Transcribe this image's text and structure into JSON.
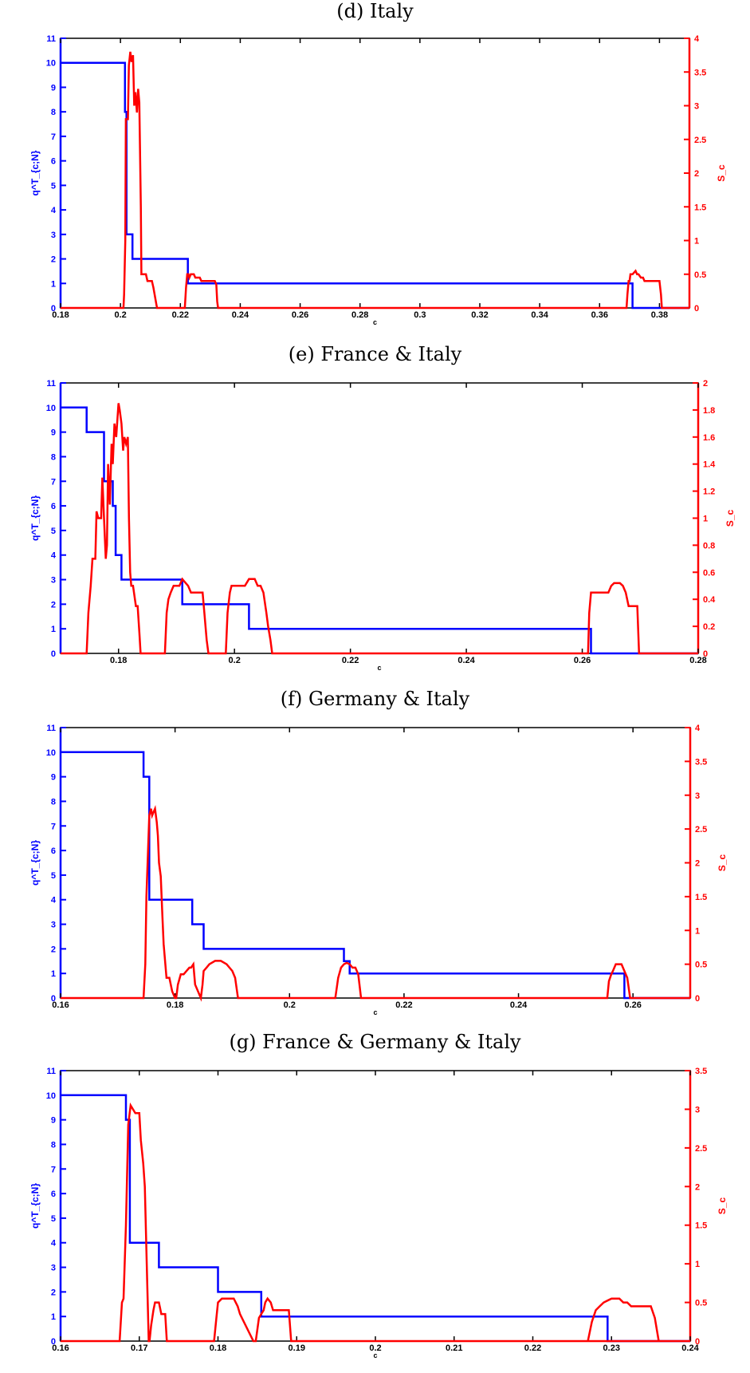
{
  "colors": {
    "left_series": "#0000ff",
    "right_series": "#ff0000",
    "axis": "#000000"
  },
  "chart_data": [
    {
      "type": "line",
      "title": "(d) Italy",
      "xlabel": "c",
      "ylabel_left": "q^T_{c;N}",
      "ylabel_right": "S_c",
      "xlim": [
        0.18,
        0.39
      ],
      "ylim_left": [
        0,
        11
      ],
      "ylim_right": [
        0,
        4
      ],
      "xticks": [
        "0.18",
        "0.2",
        "0.22",
        "0.24",
        "0.26",
        "0.28",
        "0.3",
        "0.32",
        "0.34",
        "0.36",
        "0.38"
      ],
      "yticks_left": [
        "0",
        "1",
        "2",
        "3",
        "4",
        "5",
        "6",
        "7",
        "8",
        "9",
        "10",
        "11"
      ],
      "yticks_right": [
        "0",
        "0.5",
        "1",
        "1.5",
        "2",
        "2.5",
        "3",
        "3.5",
        "4"
      ],
      "series": [
        {
          "axis": "left",
          "color": "#0000ff",
          "x": [
            0.18,
            0.2015,
            0.2015,
            0.202,
            0.202,
            0.204,
            0.204,
            0.2225,
            0.2225,
            0.371,
            0.371,
            0.39
          ],
          "y": [
            10,
            10,
            8,
            8,
            3,
            3,
            2,
            2,
            1,
            1,
            0,
            0
          ]
        },
        {
          "axis": "right",
          "color": "#ff0000",
          "x": [
            0.18,
            0.201,
            0.2012,
            0.2016,
            0.2018,
            0.2025,
            0.2028,
            0.2033,
            0.2037,
            0.2042,
            0.2046,
            0.205,
            0.2055,
            0.2059,
            0.2063,
            0.2068,
            0.207,
            0.2073,
            0.2078,
            0.2085,
            0.209,
            0.2105,
            0.211,
            0.2118,
            0.2122,
            0.2215,
            0.2219,
            0.2223,
            0.2227,
            0.223,
            0.2235,
            0.2245,
            0.225,
            0.2265,
            0.227,
            0.2315,
            0.232,
            0.2323,
            0.2326,
            0.369,
            0.3693,
            0.3697,
            0.37,
            0.3703,
            0.371,
            0.372,
            0.3725,
            0.373,
            0.3738,
            0.3745,
            0.375,
            0.38,
            0.3805,
            0.3808,
            0.39
          ],
          "y": [
            0,
            0,
            0.2,
            1.0,
            2.8,
            2.8,
            3.6,
            3.8,
            3.65,
            3.75,
            3.0,
            3.2,
            2.9,
            3.25,
            3.05,
            1.5,
            0.5,
            0.5,
            0.5,
            0.5,
            0.4,
            0.4,
            0.3,
            0.1,
            0,
            0,
            0.3,
            0.5,
            0.5,
            0.45,
            0.5,
            0.5,
            0.45,
            0.45,
            0.4,
            0.4,
            0.35,
            0.1,
            0,
            0,
            0.2,
            0.4,
            0.4,
            0.5,
            0.5,
            0.55,
            0.5,
            0.5,
            0.45,
            0.45,
            0.4,
            0.4,
            0.2,
            0,
            0
          ]
        }
      ]
    },
    {
      "type": "line",
      "title": "(e) France & Italy",
      "xlabel": "c",
      "ylabel_left": "q^T_{c;N}",
      "ylabel_right": "S_c",
      "xlim": [
        0.17,
        0.28
      ],
      "ylim_left": [
        0,
        11
      ],
      "ylim_right": [
        0,
        2
      ],
      "xticks": [
        "0.18",
        "0.2",
        "0.22",
        "0.24",
        "0.26",
        "0.28"
      ],
      "yticks_left": [
        "0",
        "1",
        "2",
        "3",
        "4",
        "5",
        "6",
        "7",
        "8",
        "9",
        "10",
        "11"
      ],
      "yticks_right": [
        "0",
        "0.2",
        "0.4",
        "0.6",
        "0.8",
        "1",
        "1.2",
        "1.4",
        "1.6",
        "1.8",
        "2"
      ],
      "series": [
        {
          "axis": "left",
          "color": "#0000ff",
          "x": [
            0.17,
            0.1745,
            0.1745,
            0.1775,
            0.1775,
            0.179,
            0.179,
            0.1795,
            0.1795,
            0.1805,
            0.1805,
            0.191,
            0.191,
            0.2025,
            0.2025,
            0.2615,
            0.2615,
            0.28
          ],
          "y": [
            10,
            10,
            9,
            9,
            7,
            7,
            6,
            6,
            4,
            4,
            3,
            3,
            2,
            2,
            1,
            1,
            0,
            0
          ]
        },
        {
          "axis": "right",
          "color": "#ff0000",
          "x": [
            0.17,
            0.1745,
            0.1748,
            0.1752,
            0.1755,
            0.176,
            0.1762,
            0.1765,
            0.177,
            0.1772,
            0.1775,
            0.1778,
            0.178,
            0.1782,
            0.1785,
            0.1788,
            0.179,
            0.1793,
            0.1796,
            0.18,
            0.1802,
            0.1805,
            0.1808,
            0.181,
            0.1813,
            0.1816,
            0.1818,
            0.182,
            0.1822,
            0.1825,
            0.183,
            0.1833,
            0.1836,
            0.1838,
            0.188,
            0.1883,
            0.1886,
            0.189,
            0.1895,
            0.1905,
            0.191,
            0.192,
            0.1925,
            0.1945,
            0.1948,
            0.1952,
            0.1955,
            0.1985,
            0.1988,
            0.1992,
            0.1995,
            0.2015,
            0.2018,
            0.2025,
            0.2035,
            0.204,
            0.2045,
            0.205,
            0.2055,
            0.2058,
            0.2062,
            0.2065,
            0.261,
            0.2612,
            0.2615,
            0.2645,
            0.265,
            0.2655,
            0.2665,
            0.267,
            0.2675,
            0.268,
            0.2685,
            0.2695,
            0.2698,
            0.28
          ],
          "y": [
            0,
            0,
            0.3,
            0.5,
            0.7,
            0.7,
            1.05,
            1.0,
            1.0,
            1.3,
            1.0,
            0.7,
            0.8,
            1.4,
            1.1,
            1.55,
            1.4,
            1.7,
            1.6,
            1.85,
            1.8,
            1.7,
            1.5,
            1.6,
            1.55,
            1.6,
            1.0,
            0.6,
            0.5,
            0.5,
            0.35,
            0.35,
            0.15,
            0,
            0,
            0.3,
            0.4,
            0.45,
            0.5,
            0.5,
            0.55,
            0.5,
            0.45,
            0.45,
            0.3,
            0.1,
            0,
            0,
            0.3,
            0.45,
            0.5,
            0.5,
            0.5,
            0.55,
            0.55,
            0.5,
            0.5,
            0.45,
            0.3,
            0.2,
            0.1,
            0,
            0,
            0.3,
            0.45,
            0.45,
            0.5,
            0.52,
            0.52,
            0.5,
            0.45,
            0.35,
            0.35,
            0.35,
            0,
            0
          ]
        }
      ]
    },
    {
      "type": "line",
      "title": "(f) Germany & Italy",
      "xlabel": "c",
      "ylabel_left": "q^T_{c;N}",
      "ylabel_right": "S_c",
      "xlim": [
        0.16,
        0.27
      ],
      "ylim_left": [
        0,
        11
      ],
      "ylim_right": [
        0,
        4
      ],
      "xticks": [
        "0.16",
        "0.18",
        "0.2",
        "0.22",
        "0.24",
        "0.26"
      ],
      "yticks_left": [
        "0",
        "1",
        "2",
        "3",
        "4",
        "5",
        "6",
        "7",
        "8",
        "9",
        "10",
        "11"
      ],
      "yticks_right": [
        "0",
        "0.5",
        "1",
        "1.5",
        "2",
        "2.5",
        "3",
        "3.5",
        "4"
      ],
      "series": [
        {
          "axis": "left",
          "color": "#0000ff",
          "x": [
            0.16,
            0.1745,
            0.1745,
            0.1755,
            0.1755,
            0.183,
            0.183,
            0.185,
            0.185,
            0.2095,
            0.2095,
            0.2105,
            0.2105,
            0.2585,
            0.2585,
            0.27
          ],
          "y": [
            10,
            10,
            9,
            9,
            4,
            4,
            3,
            3,
            2,
            2,
            1.5,
            1.5,
            1,
            1,
            0,
            0
          ]
        },
        {
          "axis": "right",
          "color": "#ff0000",
          "x": [
            0.16,
            0.1745,
            0.1748,
            0.175,
            0.1755,
            0.1758,
            0.176,
            0.1765,
            0.1768,
            0.177,
            0.1772,
            0.1775,
            0.1778,
            0.178,
            0.1785,
            0.179,
            0.1795,
            0.18,
            0.1802,
            0.1805,
            0.181,
            0.1815,
            0.182,
            0.1825,
            0.1828,
            0.1832,
            0.1835,
            0.1845,
            0.1848,
            0.185,
            0.1855,
            0.186,
            0.187,
            0.188,
            0.189,
            0.19,
            0.1905,
            0.191,
            0.208,
            0.2085,
            0.209,
            0.2095,
            0.21,
            0.2105,
            0.211,
            0.2115,
            0.212,
            0.2125,
            0.2555,
            0.2558,
            0.2562,
            0.2565,
            0.257,
            0.258,
            0.2585,
            0.259,
            0.2595,
            0.27
          ],
          "y": [
            0,
            0,
            0.5,
            1.5,
            2.7,
            2.8,
            2.7,
            2.8,
            2.6,
            2.4,
            2.0,
            1.8,
            1.2,
            0.8,
            0.3,
            0.3,
            0.1,
            0,
            0,
            0.2,
            0.35,
            0.35,
            0.4,
            0.45,
            0.45,
            0.5,
            0.2,
            0,
            0.2,
            0.4,
            0.45,
            0.5,
            0.55,
            0.55,
            0.5,
            0.4,
            0.3,
            0,
            0,
            0.3,
            0.45,
            0.5,
            0.52,
            0.5,
            0.45,
            0.45,
            0.35,
            0,
            0,
            0.25,
            0.35,
            0.4,
            0.5,
            0.5,
            0.4,
            0.3,
            0,
            0
          ]
        }
      ]
    },
    {
      "type": "line",
      "title": "(g) France & Germany & Italy",
      "xlabel": "c",
      "ylabel_left": "q^T_{c;N}",
      "ylabel_right": "S_c",
      "xlim": [
        0.16,
        0.24
      ],
      "ylim_left": [
        0,
        11
      ],
      "ylim_right": [
        0,
        3.5
      ],
      "xticks": [
        "0.16",
        "0.17",
        "0.18",
        "0.19",
        "0.2",
        "0.21",
        "0.22",
        "0.23",
        "0.24"
      ],
      "yticks_left": [
        "0",
        "1",
        "2",
        "3",
        "4",
        "5",
        "6",
        "7",
        "8",
        "9",
        "10",
        "11"
      ],
      "yticks_right": [
        "0",
        "0.5",
        "1",
        "1.5",
        "2",
        "2.5",
        "3",
        "3.5"
      ],
      "series": [
        {
          "axis": "left",
          "color": "#0000ff",
          "x": [
            0.16,
            0.1683,
            0.1683,
            0.1688,
            0.1688,
            0.1725,
            0.1725,
            0.18,
            0.18,
            0.1855,
            0.1855,
            0.2295,
            0.2295,
            0.24
          ],
          "y": [
            10,
            10,
            9,
            9,
            4,
            4,
            3,
            3,
            2,
            2,
            1,
            1,
            0,
            0
          ]
        },
        {
          "axis": "right",
          "color": "#ff0000",
          "x": [
            0.16,
            0.1675,
            0.1678,
            0.168,
            0.1683,
            0.1686,
            0.1689,
            0.1692,
            0.1695,
            0.17,
            0.1702,
            0.1705,
            0.1707,
            0.171,
            0.1712,
            0.1713,
            0.1715,
            0.1718,
            0.172,
            0.1723,
            0.1725,
            0.1728,
            0.173,
            0.1733,
            0.1735,
            0.174,
            0.1795,
            0.1798,
            0.18,
            0.1805,
            0.1815,
            0.182,
            0.1825,
            0.1828,
            0.1845,
            0.1848,
            0.1852,
            0.1855,
            0.1858,
            0.186,
            0.1863,
            0.1867,
            0.187,
            0.189,
            0.1893,
            0.24
          ],
          "y": [
            0,
            0,
            0.5,
            0.55,
            1.5,
            2.8,
            3.05,
            3.0,
            2.95,
            2.95,
            2.6,
            2.3,
            2.0,
            0.8,
            0,
            0,
            0.2,
            0.4,
            0.5,
            0.5,
            0.5,
            0.35,
            0.35,
            0.35,
            0,
            0,
            0,
            0.3,
            0.5,
            0.55,
            0.55,
            0.55,
            0.45,
            0.35,
            0,
            0,
            0.3,
            0.35,
            0.4,
            0.5,
            0.55,
            0.5,
            0.4,
            0.4,
            0,
            0
          ]
        },
        {
          "axis": "right",
          "color": "#ff0000",
          "x": [
            0.227,
            0.2275,
            0.228,
            0.2285,
            0.229,
            0.23,
            0.231,
            0.2315,
            0.232,
            0.2325,
            0.233,
            0.235,
            0.2355,
            0.236
          ],
          "y": [
            0,
            0.25,
            0.4,
            0.45,
            0.5,
            0.55,
            0.55,
            0.5,
            0.5,
            0.45,
            0.45,
            0.45,
            0.3,
            0
          ]
        }
      ]
    }
  ]
}
